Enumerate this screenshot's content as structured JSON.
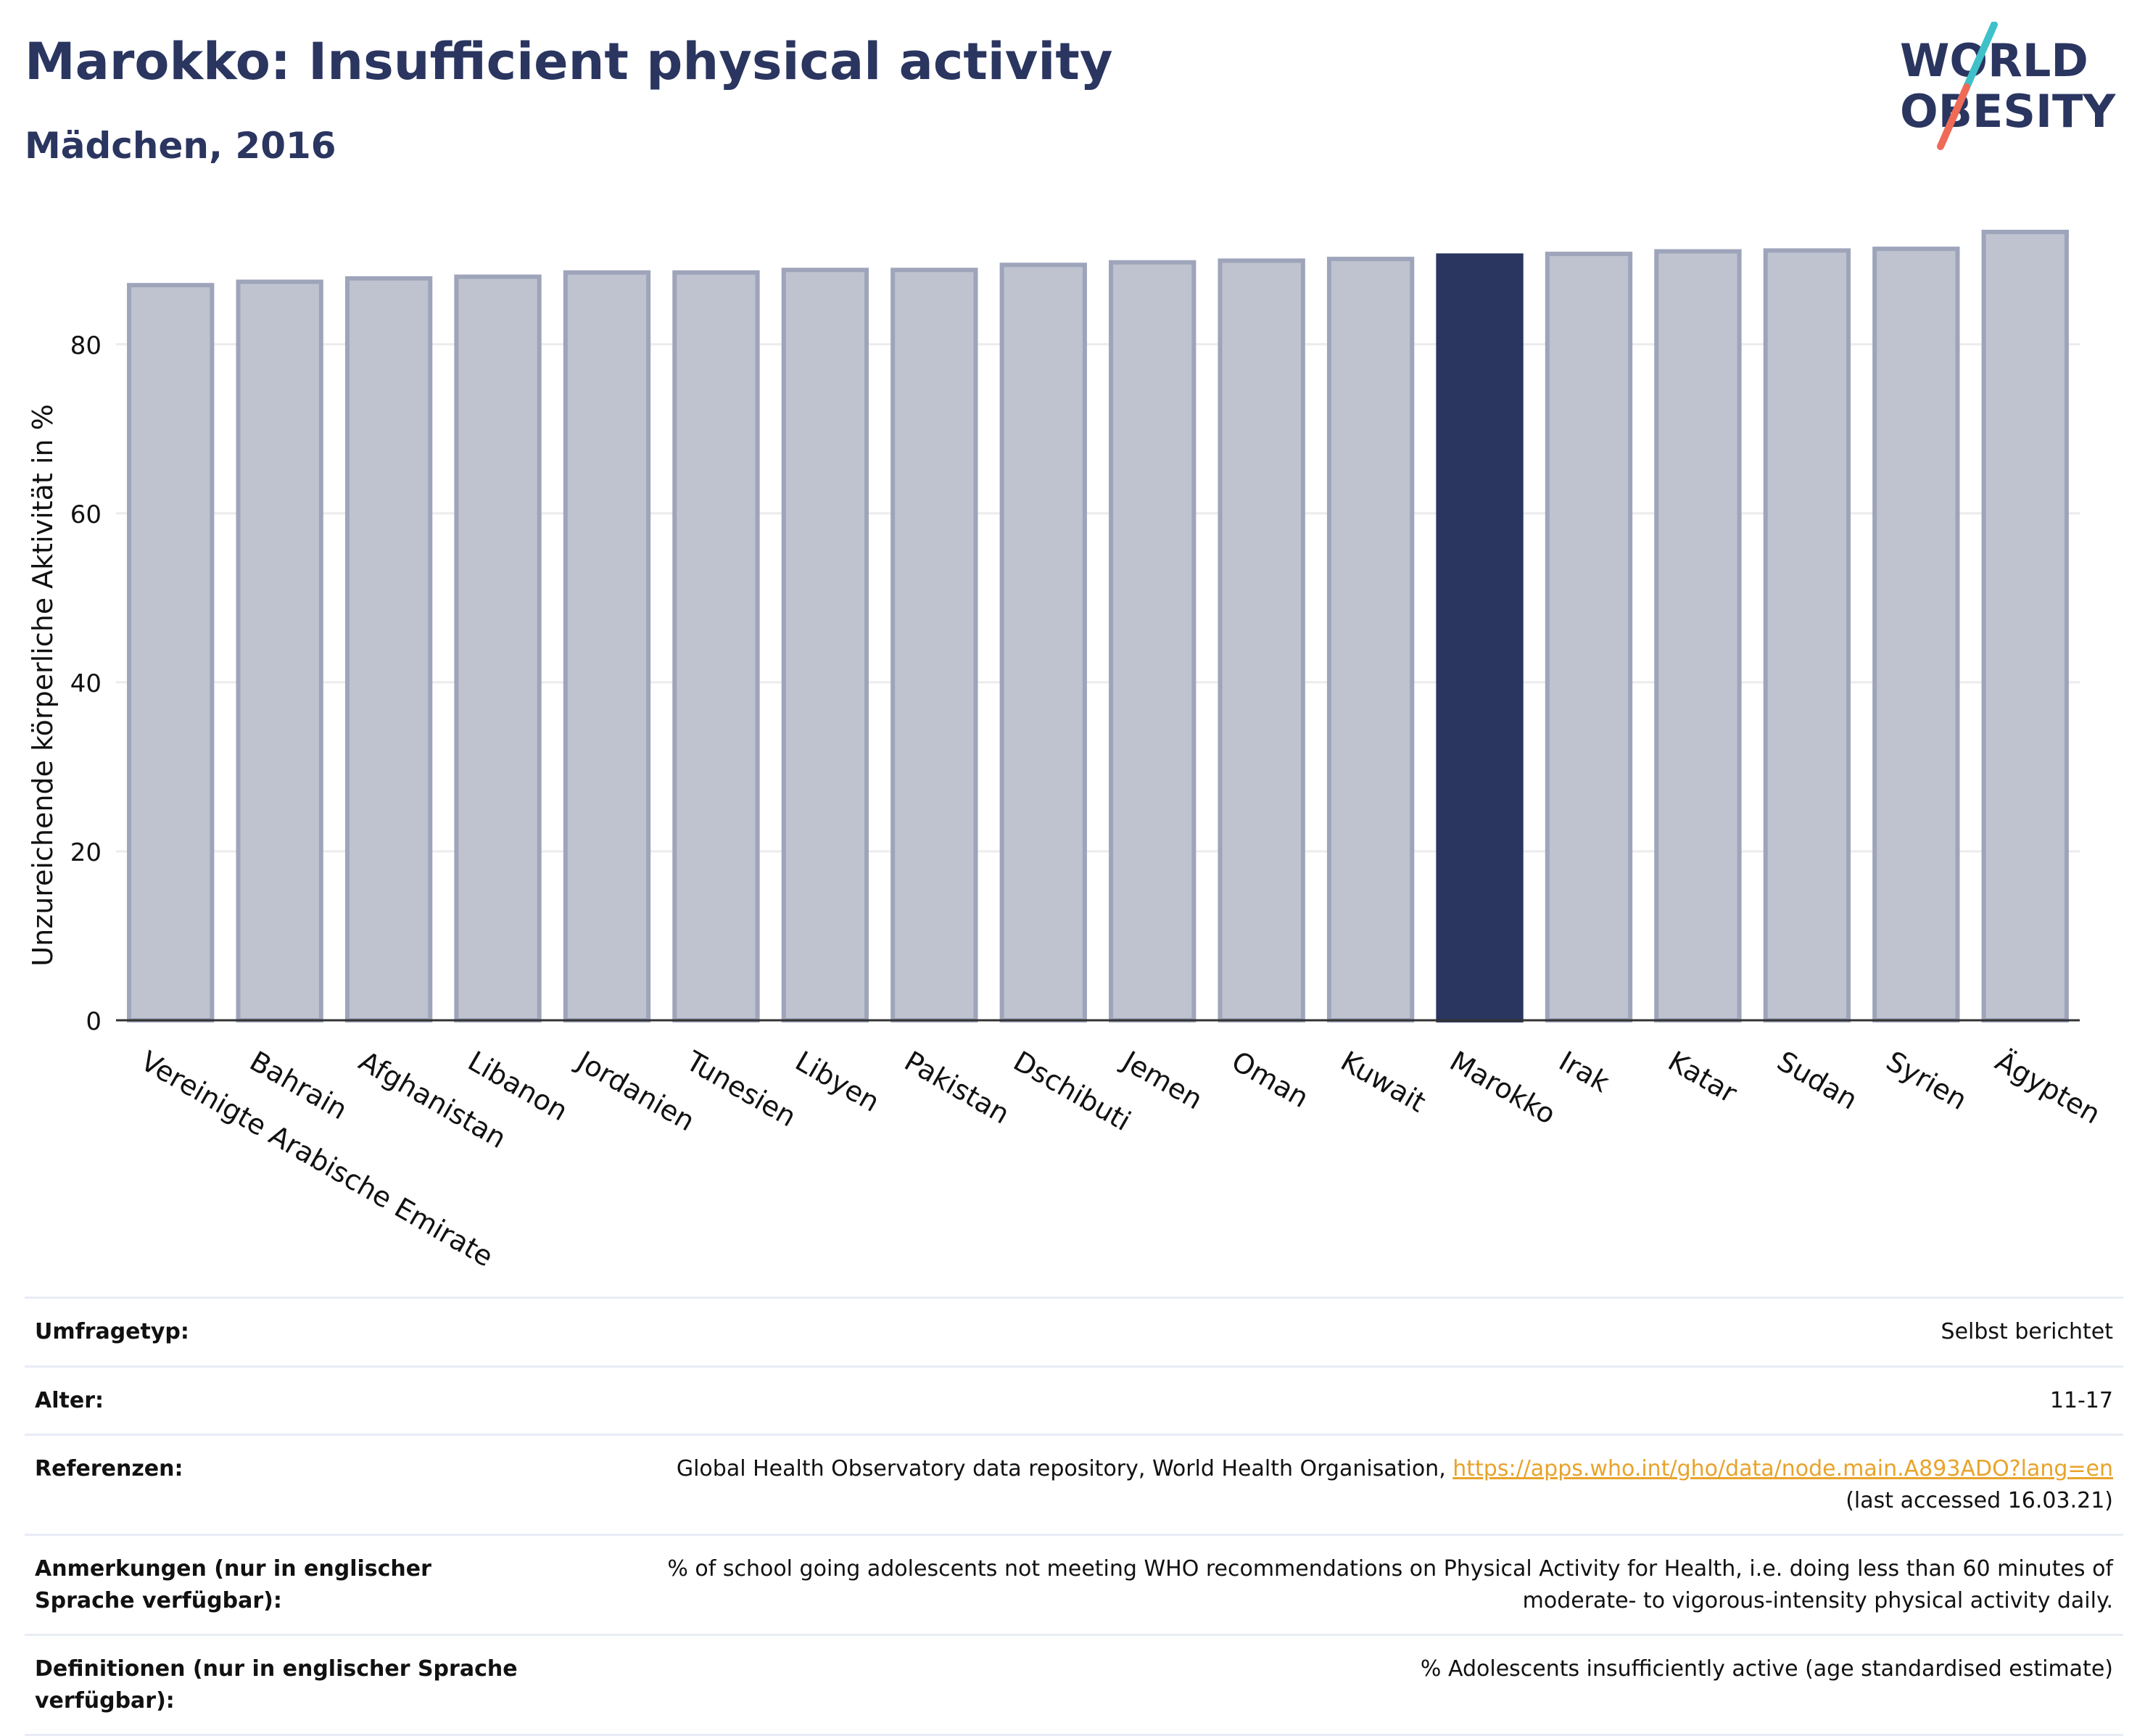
{
  "header": {
    "title": "Marokko: Insufficient physical activity",
    "subtitle": "Mädchen, 2016"
  },
  "logo": {
    "line1": "WORLD",
    "line2": "OBESITY",
    "colors": {
      "text": "#2a3560",
      "slash_top": "#3ec1c9",
      "slash_bottom": "#ef6a57"
    }
  },
  "chart_data": {
    "type": "bar",
    "categories": [
      "Vereinigte Arabische Emirate",
      "Bahrain",
      "Afghanistan",
      "Libanon",
      "Jordanien",
      "Tunesien",
      "Libyen",
      "Pakistan",
      "Dschibuti",
      "Jemen",
      "Oman",
      "Kuwait",
      "Marokko",
      "Irak",
      "Katar",
      "Sudan",
      "Syrien",
      "Ägypten"
    ],
    "values": [
      87.0,
      87.4,
      87.8,
      88.0,
      88.5,
      88.5,
      88.8,
      88.8,
      89.4,
      89.7,
      89.9,
      90.1,
      90.5,
      90.7,
      91.0,
      91.1,
      91.3,
      93.3
    ],
    "highlight": "Marokko",
    "ylabel": "Unzureichende körperliche Aktivität in %",
    "xlabel": "",
    "ylim": [
      0,
      95
    ],
    "yticks": [
      0,
      20,
      40,
      60,
      80
    ],
    "grid": true,
    "colors": {
      "bar": "#bfc3d0",
      "bar_border": "#9ea4ba",
      "highlight": "#2a3560",
      "grid": "#ececec",
      "axis": "#333333"
    }
  },
  "meta": {
    "rows": [
      {
        "label": "Umfragetyp:",
        "value": "Selbst berichtet"
      },
      {
        "label": "Alter:",
        "value": "11-17"
      },
      {
        "label": "Referenzen:",
        "value": "Global Health Observatory data repository, World Health Organisation, ",
        "link": "https://apps.who.int/gho/data/node.main.A893ADO?lang=en",
        "value_after": "(last accessed 16.03.21)"
      },
      {
        "label": "Anmerkungen (nur in englischer Sprache verfügbar):",
        "value": "% of school going adolescents not meeting WHO recommendations on Physical Activity for Health, i.e. doing less than 60 minutes of moderate- to vigorous-intensity physical activity daily."
      },
      {
        "label": "Definitionen (nur in englischer Sprache verfügbar):",
        "value": "% Adolescents insufficiently active (age standardised estimate)"
      }
    ]
  }
}
